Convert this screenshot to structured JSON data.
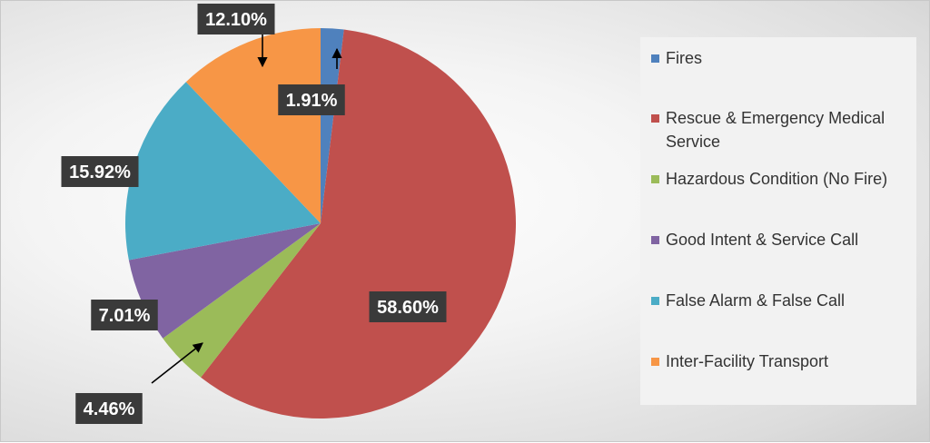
{
  "chart_data": {
    "type": "pie",
    "categories": [
      "Fires",
      "Rescue & Emergency Medical Service",
      "Hazardous Condition (No Fire)",
      "Good Intent & Service Call",
      "False Alarm & False Call",
      "Inter-Facility Transport"
    ],
    "values": [
      1.91,
      58.6,
      4.46,
      7.01,
      15.92,
      12.1
    ],
    "data_labels": [
      "1.91%",
      "58.60%",
      "4.46%",
      "7.01%",
      "15.92%",
      "12.10%"
    ],
    "colors": [
      "#4f81bd",
      "#c0504d",
      "#9bbb59",
      "#8064a2",
      "#4bacc6",
      "#f79646"
    ],
    "legend_position": "right",
    "start_angle": "12 o'clock, clockwise"
  },
  "legend": {
    "items": [
      {
        "label": "Fires",
        "color": "#4f81bd"
      },
      {
        "label": "Rescue & Emergency Medical Service",
        "color": "#c0504d"
      },
      {
        "label": "Hazardous Condition (No Fire)",
        "color": "#9bbb59"
      },
      {
        "label": "Good Intent & Service Call",
        "color": "#8064a2"
      },
      {
        "label": "False Alarm & False Call",
        "color": "#4bacc6"
      },
      {
        "label": "Inter-Facility Transport",
        "color": "#f79646"
      }
    ]
  }
}
